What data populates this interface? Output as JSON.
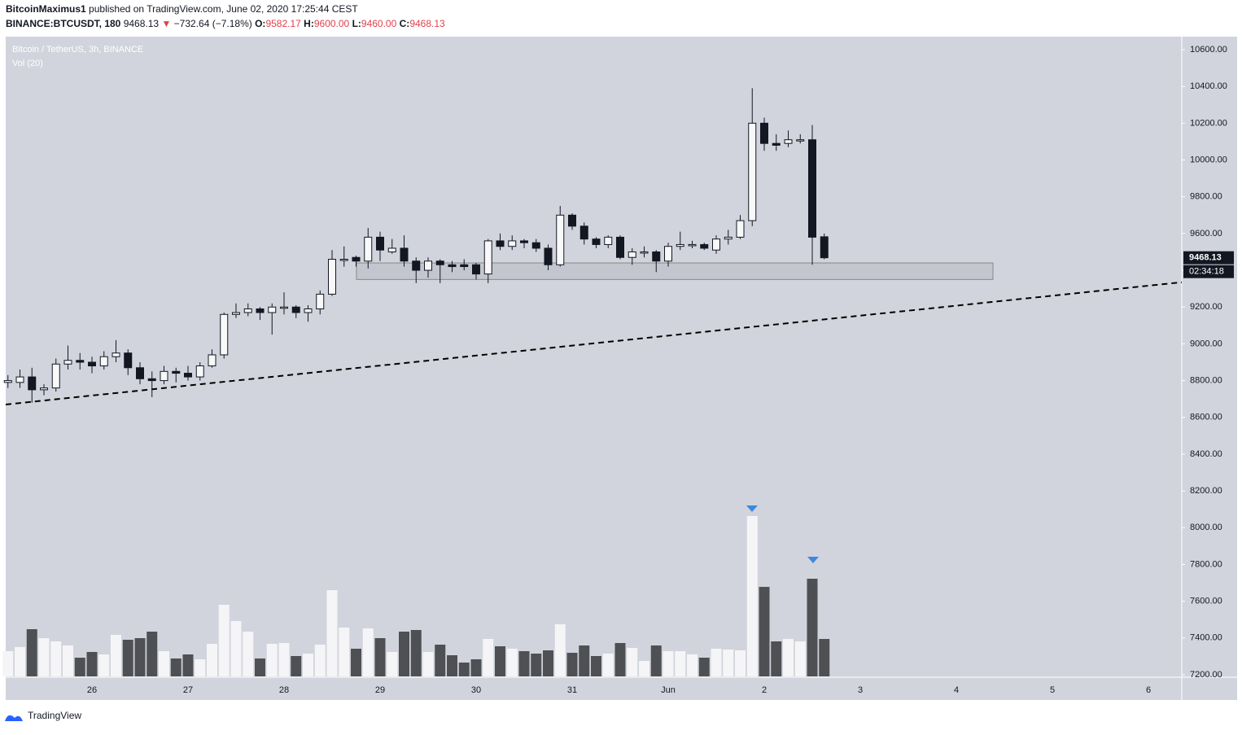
{
  "header": {
    "author": "BitcoinMaximus1",
    "published": "published on TradingView.com, June 02, 2020 17:25:44 CEST",
    "symbol": "BINANCE:BTCUSDT, 180",
    "last": "9468.13",
    "arrow": "▼",
    "change": "−732.64 (−7.18%)",
    "o_label": "O:",
    "o_value": "9582.17",
    "h_label": "H:",
    "h_value": "9600.00",
    "l_label": "L:",
    "l_value": "9460.00",
    "c_label": "C:",
    "c_value": "9468.13"
  },
  "footer": {
    "brand": "TradingView"
  },
  "chart_data": {
    "type": "candlestick",
    "legend": "Bitcoin / TetherUS, 3h, BINANCE",
    "volume_legend": "Vol (20)",
    "price_tag": {
      "value": 9468.13,
      "label": "9468.13"
    },
    "countdown": "02:34:18",
    "up_color": "#f8f8f8",
    "down_color": "#131722",
    "volume_up_color": "#f5f5f7",
    "volume_down_color": "#4f5054",
    "categories": [
      null,
      null,
      null,
      null,
      null,
      null,
      null,
      "26",
      null,
      null,
      null,
      null,
      null,
      null,
      null,
      "27",
      null,
      null,
      null,
      null,
      null,
      null,
      null,
      "28",
      null,
      null,
      null,
      null,
      null,
      null,
      null,
      "29",
      null,
      null,
      null,
      null,
      null,
      null,
      null,
      "30",
      null,
      null,
      null,
      null,
      null,
      null,
      null,
      "31",
      null,
      null,
      null,
      null,
      null,
      null,
      null,
      "Jun",
      null,
      null,
      null,
      null,
      null,
      null,
      null,
      "2",
      null,
      null,
      null,
      null,
      null,
      null,
      null,
      "3",
      null,
      null,
      null,
      null,
      null,
      null,
      null,
      "4",
      null,
      null,
      null,
      null,
      null,
      null,
      null,
      "5",
      null,
      null,
      null,
      null,
      null,
      null,
      null,
      "6",
      null,
      null
    ],
    "open": [
      8790,
      8790,
      8820,
      8750,
      8760,
      8890,
      8910,
      8900,
      8880,
      8930,
      8950,
      8870,
      8810,
      8800,
      8850,
      8840,
      8820,
      8880,
      8940,
      9160,
      9170,
      9190,
      9170,
      9200,
      9200,
      9170,
      9190,
      9270,
      9460,
      9470,
      9450,
      9580,
      9500,
      9520,
      9450,
      9400,
      9450,
      9430,
      9430,
      9430,
      9380,
      9560,
      9530,
      9560,
      9550,
      9520,
      9430,
      9700,
      9640,
      9570,
      9540,
      9580,
      9470,
      9500,
      9500,
      9450,
      9530,
      9540,
      9540,
      9510,
      9570,
      9580,
      9670,
      10200,
      10090,
      10090,
      10110,
      10110,
      9582.17,
      null,
      null,
      null,
      null,
      null,
      null,
      null,
      null,
      null,
      null,
      null,
      null,
      null,
      null,
      null,
      null,
      null,
      null,
      null,
      null,
      null,
      null,
      null,
      null,
      null,
      null,
      null,
      null,
      null
    ],
    "high": [
      8830,
      8860,
      8870,
      8780,
      8920,
      8990,
      8950,
      8930,
      8960,
      9020,
      8970,
      8900,
      8850,
      8880,
      8870,
      8880,
      8900,
      8970,
      9170,
      9220,
      9220,
      9200,
      9220,
      9280,
      9210,
      9210,
      9290,
      9510,
      9530,
      9480,
      9630,
      9610,
      9570,
      9590,
      9470,
      9470,
      9460,
      9450,
      9460,
      9440,
      9570,
      9600,
      9590,
      9570,
      9570,
      9540,
      9750,
      9710,
      9660,
      9580,
      9590,
      9590,
      9520,
      9530,
      9510,
      9550,
      9610,
      9560,
      9550,
      9590,
      9620,
      9700,
      10390,
      10230,
      10140,
      10160,
      10140,
      10190,
      9600,
      null,
      null,
      null,
      null,
      null,
      null,
      null,
      null,
      null,
      null,
      null,
      null,
      null,
      null,
      null,
      null,
      null,
      null,
      null,
      null,
      null,
      null,
      null,
      null,
      null,
      null,
      null,
      null,
      null
    ],
    "low": [
      8760,
      8760,
      8680,
      8720,
      8740,
      8860,
      8860,
      8840,
      8860,
      8900,
      8830,
      8780,
      8710,
      8780,
      8790,
      8800,
      8800,
      8870,
      8920,
      9140,
      9150,
      9130,
      9050,
      9160,
      9140,
      9120,
      9160,
      9260,
      9420,
      9420,
      9410,
      9450,
      9490,
      9420,
      9330,
      9360,
      9330,
      9390,
      9400,
      9350,
      9330,
      9510,
      9510,
      9520,
      9500,
      9400,
      9420,
      9620,
      9540,
      9520,
      9520,
      9460,
      9430,
      9470,
      9390,
      9420,
      9510,
      9520,
      9510,
      9490,
      9540,
      9570,
      9640,
      10050,
      10050,
      10070,
      10090,
      9430,
      9460,
      null,
      null,
      null,
      null,
      null,
      null,
      null,
      null,
      null,
      null,
      null,
      null,
      null,
      null,
      null,
      null,
      null,
      null,
      null,
      null,
      null,
      null,
      null,
      null,
      null,
      null,
      null,
      null,
      null
    ],
    "close": [
      8800,
      8820,
      8750,
      8760,
      8890,
      8910,
      8900,
      8880,
      8930,
      8950,
      8870,
      8810,
      8800,
      8850,
      8840,
      8820,
      8880,
      8940,
      9160,
      9170,
      9190,
      9170,
      9200,
      9200,
      9170,
      9190,
      9270,
      9460,
      9460,
      9450,
      9580,
      9510,
      9520,
      9450,
      9400,
      9450,
      9430,
      9420,
      9420,
      9380,
      9560,
      9530,
      9560,
      9550,
      9520,
      9430,
      9700,
      9640,
      9570,
      9540,
      9580,
      9470,
      9500,
      9500,
      9450,
      9530,
      9540,
      9540,
      9520,
      9570,
      9580,
      9670,
      10200,
      10090,
      10080,
      10110,
      10110,
      9580,
      9468.13,
      null,
      null,
      null,
      null,
      null,
      null,
      null,
      null,
      null,
      null,
      null,
      null,
      null,
      null,
      null,
      null,
      null,
      null,
      null,
      null,
      null,
      null,
      null,
      null,
      null,
      null,
      null,
      null,
      null
    ],
    "volume": [
      31,
      36,
      58,
      47,
      43,
      38,
      23,
      30,
      27,
      51,
      45,
      47,
      55,
      31,
      22,
      27,
      21,
      40,
      88,
      68,
      55,
      22,
      40,
      41,
      25,
      28,
      39,
      106,
      60,
      34,
      59,
      47,
      30,
      55,
      57,
      30,
      39,
      26,
      17,
      21,
      46,
      37,
      34,
      31,
      28,
      32,
      64,
      29,
      38,
      25,
      28,
      41,
      35,
      19,
      38,
      31,
      31,
      27,
      23,
      34,
      33,
      32,
      197,
      110,
      43,
      46,
      43,
      120,
      46,
      null,
      null,
      null,
      null,
      null,
      null,
      null,
      null,
      null,
      null,
      null,
      null,
      null,
      null,
      null,
      null,
      null,
      null,
      null,
      null,
      null,
      null,
      null,
      null,
      null,
      null,
      null,
      null,
      null
    ],
    "support_zone": [
      9350,
      9440
    ],
    "trendline": [
      8670,
      9335
    ],
    "ylim": [
      7200,
      10600
    ],
    "yticks": [
      {
        "value": 7200,
        "label": "7200.00"
      },
      {
        "value": 7400,
        "label": "7400.00"
      },
      {
        "value": 7600,
        "label": "7600.00"
      },
      {
        "value": 7800,
        "label": "7800.00"
      },
      {
        "value": 8000,
        "label": "8000.00"
      },
      {
        "value": 8200,
        "label": "8200.00"
      },
      {
        "value": 8400,
        "label": "8400.00"
      },
      {
        "value": 8600,
        "label": "8600.00"
      },
      {
        "value": 8800,
        "label": "8800.00"
      },
      {
        "value": 9000,
        "label": "9000.00"
      },
      {
        "value": 9200,
        "label": "9200.00"
      },
      {
        "value": 9400,
        "label": "9400.00"
      },
      {
        "value": 9600,
        "label": "9600.00"
      },
      {
        "value": 9800,
        "label": "9800.00"
      },
      {
        "value": 10000,
        "label": "10000.00"
      },
      {
        "value": 10200,
        "label": "10200.00"
      },
      {
        "value": 10400,
        "label": "10400.00"
      },
      {
        "value": 10600,
        "label": "10600.00"
      }
    ]
  }
}
